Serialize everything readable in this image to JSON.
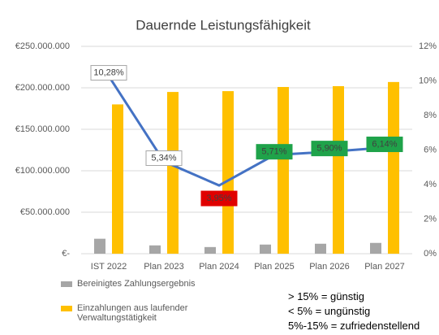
{
  "chart_data": {
    "type": "bar",
    "title": "Dauernde Leistungsfähigkeit",
    "categories": [
      "IST 2022",
      "Plan 2023",
      "Plan 2024",
      "Plan 2025",
      "Plan 2026",
      "Plan 2027"
    ],
    "series": [
      {
        "name": "Bereinigtes Zahlungsergebnis",
        "color": "#a6a6a6",
        "values": [
          18000000,
          10000000,
          8000000,
          11000000,
          12000000,
          13000000
        ]
      },
      {
        "name": "Einzahlungen aus laufender Verwaltungstätigkeit",
        "color": "#ffc000",
        "values": [
          180000000,
          195000000,
          196000000,
          201000000,
          202000000,
          207000000
        ]
      },
      {
        "type": "line",
        "axis": "y2",
        "color": "#4472c4",
        "values": [
          10.28,
          5.34,
          3.95,
          5.71,
          5.9,
          6.14
        ],
        "value_labels": [
          "10,28%",
          "5,34%",
          "3,95%",
          "5,71%",
          "5,90%",
          "6,14%"
        ],
        "value_label_colors": [
          "#ffffff",
          "#ffffff",
          "#e00000",
          "#1fa34a",
          "#1fa34a",
          "#1fa34a"
        ]
      }
    ],
    "ylim": [
      0,
      250000000
    ],
    "yticks": [
      {
        "value": 0,
        "label": "€-"
      },
      {
        "value": 50000000,
        "label": "€50.000.000"
      },
      {
        "value": 100000000,
        "label": "€100.000.000"
      },
      {
        "value": 150000000,
        "label": "€150.000.000"
      },
      {
        "value": 200000000,
        "label": "€200.000.000"
      },
      {
        "value": 250000000,
        "label": "€250.000.000"
      }
    ],
    "y2lim": [
      0,
      12
    ],
    "y2ticks": [
      {
        "value": 0,
        "label": "0%"
      },
      {
        "value": 2,
        "label": "2%"
      },
      {
        "value": 4,
        "label": "4%"
      },
      {
        "value": 6,
        "label": "6%"
      },
      {
        "value": 8,
        "label": "8%"
      },
      {
        "value": 10,
        "label": "10%"
      },
      {
        "value": 12,
        "label": "12%"
      }
    ],
    "grid": true,
    "legend": "bottom-left",
    "annotations": [
      "> 15% = günstig",
      "< 5% = ungünstig",
      "5%-15% = zufriedenstellend"
    ]
  }
}
